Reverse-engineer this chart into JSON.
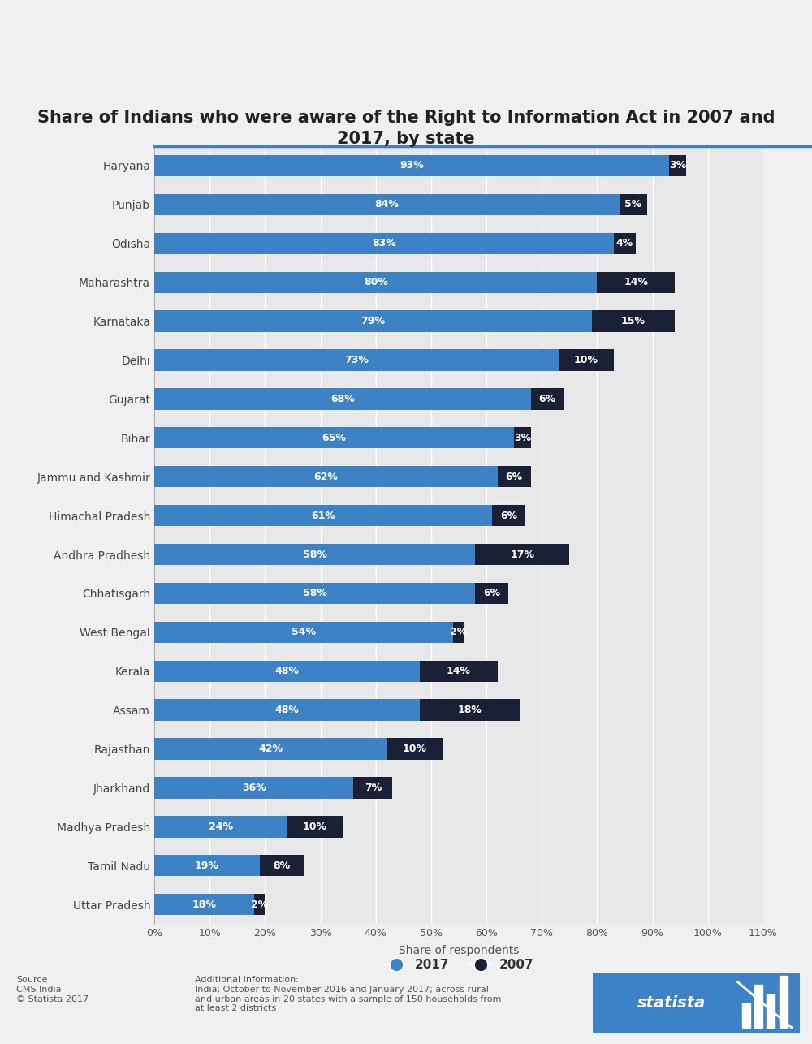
{
  "title": "Share of Indians who were aware of the Right to Information Act in 2007 and\n2017, by state",
  "states": [
    "Haryana",
    "Punjab",
    "Odisha",
    "Maharashtra",
    "Karnataka",
    "Delhi",
    "Gujarat",
    "Bihar",
    "Jammu and Kashmir",
    "Himachal Pradesh",
    "Andhra Pradhesh",
    "Chhatisgarh",
    "West Bengal",
    "Kerala",
    "Assam",
    "Rajasthan",
    "Jharkhand",
    "Madhya Pradesh",
    "Tamil Nadu",
    "Uttar Pradesh"
  ],
  "val_2017": [
    93,
    84,
    83,
    80,
    79,
    73,
    68,
    65,
    62,
    61,
    58,
    58,
    54,
    48,
    48,
    42,
    36,
    24,
    19,
    18
  ],
  "val_2007": [
    3,
    5,
    4,
    14,
    15,
    10,
    6,
    3,
    6,
    6,
    17,
    6,
    2,
    14,
    18,
    10,
    7,
    10,
    8,
    2
  ],
  "color_2017": "#3d82c4",
  "color_2007": "#1a2035",
  "xlabel": "Share of respondents",
  "bg_color": "#f0f0f0",
  "plot_bg_color": "#e8e8e8",
  "title_fontsize": 15,
  "label_fontsize": 10,
  "bar_label_fontsize": 9,
  "tick_fontsize": 9,
  "source_text": "Source\nCMS India\n© Statista 2017",
  "additional_text": "Additional Information:\nIndia; October to November 2016 and January 2017; across rural\nand urban areas in 20 states with a sample of 150 households from\nat least 2 districts"
}
